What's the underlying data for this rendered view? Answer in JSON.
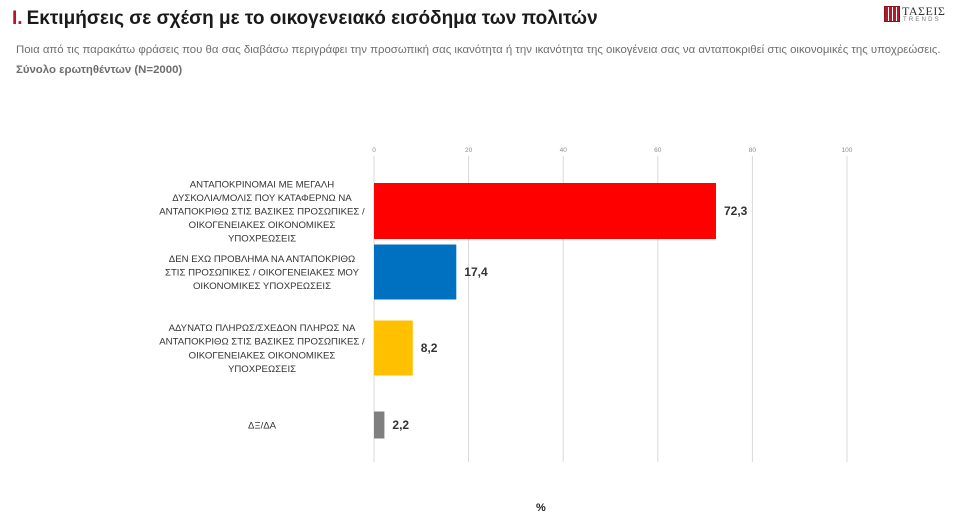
{
  "header": {
    "title_number": "I.",
    "title_text": "Εκτιμήσεις σε σχέση με το οικογενειακό εισόδημα των πολιτών",
    "subtitle": "Ποια από τις παρακάτω φράσεις που θα σας διαβάσω περιγράφει την προσωπική σας ικανότητα ή την ικανότητα της οικογένεια σας να ανταποκριθεί στις οικονομικές της  υποχρεώσεις.",
    "sample": "Σύνολο ερωτηθέντων (N=2000)"
  },
  "logo": {
    "name": "ΤΑΣΕΙΣ",
    "sub": "TRENDS"
  },
  "chart_data": {
    "type": "bar",
    "orientation": "horizontal",
    "xlabel": "%",
    "xlim": [
      0,
      100
    ],
    "xticks": [
      0,
      20,
      40,
      60,
      80,
      100
    ],
    "grid": true,
    "categories": [
      [
        "ΑΝΤΑΠΟΚΡΙΝΟΜΑΙ ΜΕ ΜΕΓΑΛΗ",
        "ΔΥΣΚΟΛΙΑ/ΜΟΛΙΣ ΠΟΥ ΚΑΤΑΦΕΡΝΩ ΝΑ",
        "ΑΝΤΑΠΟΚΡΙΘΩ ΣΤΙΣ ΒΑΣΙΚΕΣ ΠΡΟΣΩΠΙΚΕΣ /",
        "ΟΙΚΟΓΕΝΕΙΑΚΕΣ ΟΙΚΟΝΟΜΙΚΕΣ",
        "ΥΠΟΧΡΕΩΣΕΙΣ"
      ],
      [
        "ΔΕΝ ΕΧΩ ΠΡΟΒΛΗΜΑ ΝΑ ΑΝΤΑΠΟΚΡΙΘΩ",
        "ΣΤΙΣ ΠΡΟΣΩΠΙΚΕΣ / ΟΙΚΟΓΕΝΕΙΑΚΕΣ ΜΟΥ",
        "ΟΙΚΟΝΟΜΙΚΕΣ ΥΠΟΧΡΕΩΣΕΙΣ"
      ],
      [
        "ΑΔΥΝΑΤΩ ΠΛΗΡΩΣ/ΣΧΕΔΟΝ ΠΛΗΡΩΣ ΝΑ",
        "ΑΝΤΑΠΟΚΡΙΘΩ ΣΤΙΣ ΒΑΣΙΚΕΣ ΠΡΟΣΩΠΙΚΕΣ /",
        "ΟΙΚΟΓΕΝΕΙΑΚΕΣ ΟΙΚΟΝΟΜΙΚΕΣ",
        "ΥΠΟΧΡΕΩΣΕΙΣ"
      ],
      [
        "ΔΞ/ΔΑ"
      ]
    ],
    "values": [
      72.3,
      17.4,
      8.2,
      2.2
    ],
    "value_labels": [
      "72,3",
      "17,4",
      "8,2",
      "2,2"
    ],
    "colors": [
      "#ff0000",
      "#0070c0",
      "#ffc000",
      "#7f7f7f"
    ]
  }
}
